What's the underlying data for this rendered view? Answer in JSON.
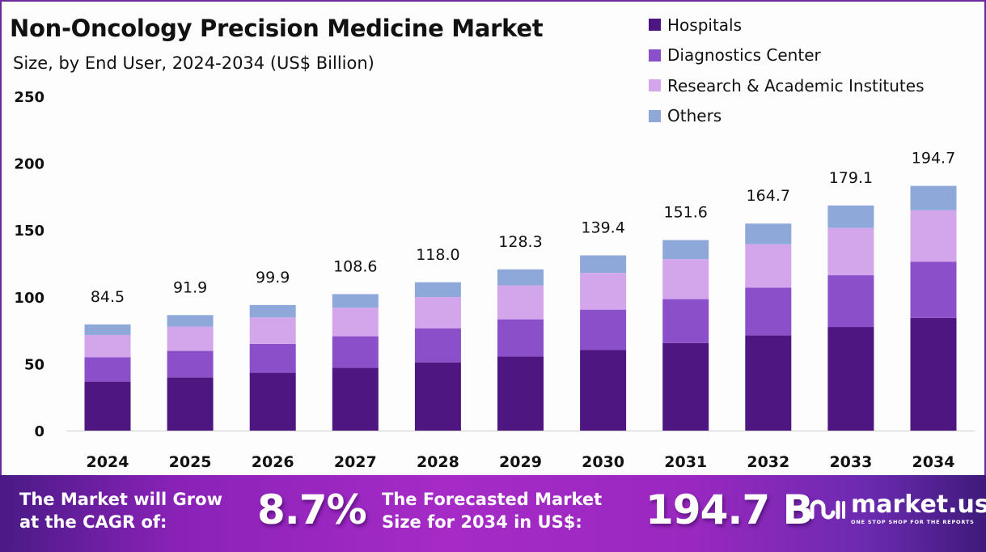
{
  "header": {
    "title": "Non-Oncology Precision Medicine Market",
    "subtitle": "Size, by End User, 2024-2034 (US$ Billion)"
  },
  "legend": [
    {
      "label": "Hospitals",
      "color": "#4e1680"
    },
    {
      "label": "Diagnostics Center",
      "color": "#8b4fca"
    },
    {
      "label": "Research & Academic Institutes",
      "color": "#d3a6ec"
    },
    {
      "label": "Others",
      "color": "#8fa8da"
    }
  ],
  "chart_data": {
    "type": "bar",
    "stacked": true,
    "title": "Non-Oncology Precision Medicine Market",
    "subtitle": "Size, by End User, 2024-2034 (US$ Billion)",
    "xlabel": "",
    "ylabel": "US$ Billion",
    "ylim": [
      0,
      250
    ],
    "yticks": [
      "0",
      "50",
      "100",
      "150",
      "200",
      "250"
    ],
    "grid": false,
    "legend_position": "top-right",
    "categories": [
      "2024",
      "2025",
      "2026",
      "2027",
      "2028",
      "2029",
      "2030",
      "2031",
      "2032",
      "2033",
      "2034"
    ],
    "totals": [
      84.5,
      91.9,
      99.9,
      108.6,
      118.0,
      128.3,
      139.4,
      151.6,
      164.7,
      179.1,
      194.7
    ],
    "total_labels": [
      "84.5",
      "91.9",
      "99.9",
      "108.6",
      "118.0",
      "128.3",
      "139.4",
      "151.6",
      "164.7",
      "179.1",
      "194.7"
    ],
    "series": [
      {
        "name": "Hospitals",
        "color": "#4e1680",
        "values": [
          38.9,
          42.3,
          46.0,
          50.0,
          54.3,
          59.0,
          64.1,
          69.7,
          75.8,
          82.4,
          89.6
        ]
      },
      {
        "name": "Diagnostics Center",
        "color": "#8b4fca",
        "values": [
          19.4,
          21.1,
          23.0,
          25.0,
          27.1,
          29.5,
          32.1,
          34.9,
          37.9,
          41.2,
          44.8
        ]
      },
      {
        "name": "Research & Academic Institutes",
        "color": "#d3a6ec",
        "values": [
          17.7,
          19.3,
          21.0,
          22.8,
          24.8,
          26.9,
          29.3,
          31.8,
          34.6,
          37.6,
          40.9
        ]
      },
      {
        "name": "Others",
        "color": "#8fa8da",
        "values": [
          8.5,
          9.2,
          9.9,
          10.8,
          11.8,
          12.9,
          13.9,
          15.2,
          16.4,
          17.9,
          19.4
        ]
      }
    ]
  },
  "banner": {
    "cagr_text_line1": "The Market will Grow",
    "cagr_text_line2": "at the CAGR of:",
    "cagr_value": "8.7%",
    "forecast_text_line1": "The Forecasted Market",
    "forecast_text_line2": "Size for 2034 in US$:",
    "forecast_value": "194.7 B",
    "logo_name": "market.us",
    "logo_tagline": "ONE STOP SHOP FOR THE REPORTS"
  }
}
